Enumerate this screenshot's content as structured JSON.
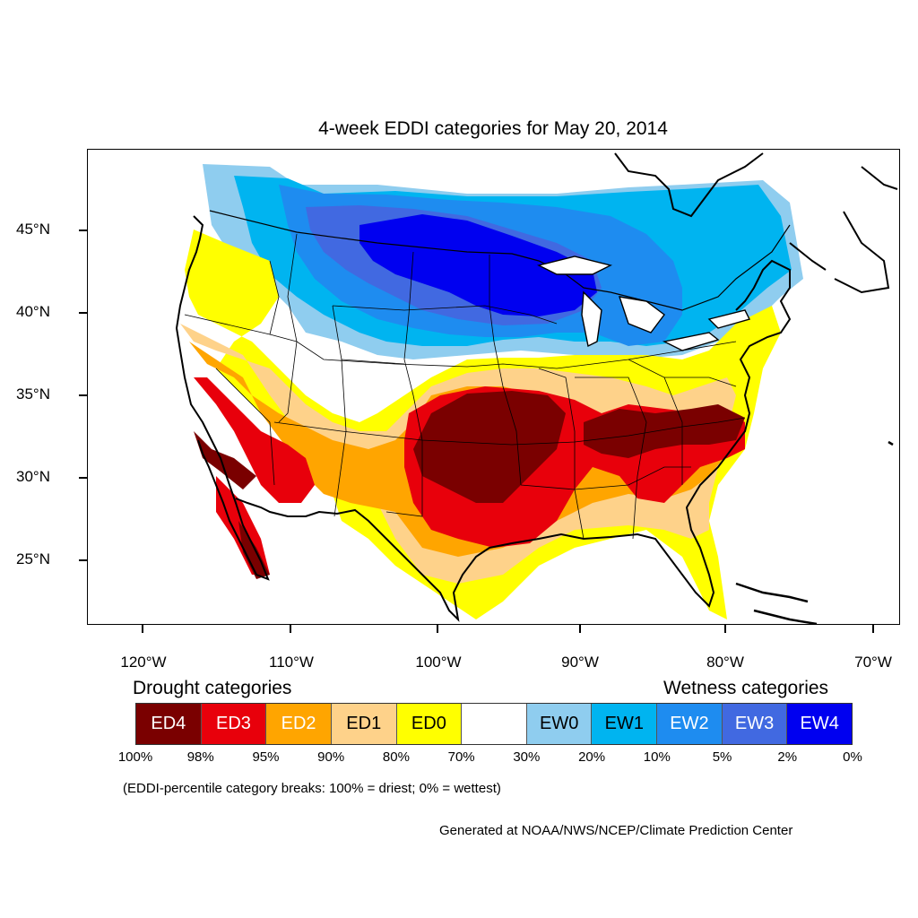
{
  "title": "4-week EDDI categories for May 20, 2014",
  "lat_labels": [
    "45°N",
    "40°N",
    "35°N",
    "30°N",
    "25°N"
  ],
  "lon_labels": [
    "120°W",
    "110°W",
    "100°W",
    "90°W",
    "80°W",
    "70°W"
  ],
  "legend": {
    "drought_heading": "Drought categories",
    "wetness_heading": "Wetness categories",
    "categories": [
      {
        "label": "ED4",
        "color": "#7a0000",
        "text_color": "#ffffff"
      },
      {
        "label": "ED3",
        "color": "#e8000b",
        "text_color": "#ffffff"
      },
      {
        "label": "ED2",
        "color": "#ffa500",
        "text_color": "#ffffff"
      },
      {
        "label": "ED1",
        "color": "#fed28a",
        "text_color": "#000000"
      },
      {
        "label": "ED0",
        "color": "#ffff00",
        "text_color": "#000000"
      },
      {
        "label": "",
        "color": "#ffffff",
        "text_color": "#000000"
      },
      {
        "label": "EW0",
        "color": "#8fcdef",
        "text_color": "#000000"
      },
      {
        "label": "EW1",
        "color": "#00b4f0",
        "text_color": "#000000"
      },
      {
        "label": "EW2",
        "color": "#1e8cf0",
        "text_color": "#ffffff"
      },
      {
        "label": "EW3",
        "color": "#4169e1",
        "text_color": "#ffffff"
      },
      {
        "label": "EW4",
        "color": "#0000f0",
        "text_color": "#ffffff"
      }
    ],
    "percent_breaks": [
      "100%",
      "98%",
      "95%",
      "90%",
      "80%",
      "70%",
      "30%",
      "20%",
      "10%",
      "5%",
      "2%",
      "0%"
    ]
  },
  "note": "(EDDI-percentile category breaks: 100% = driest; 0% = wettest)",
  "credit": "Generated at NOAA/NWS/NCEP/Climate Prediction Center"
}
